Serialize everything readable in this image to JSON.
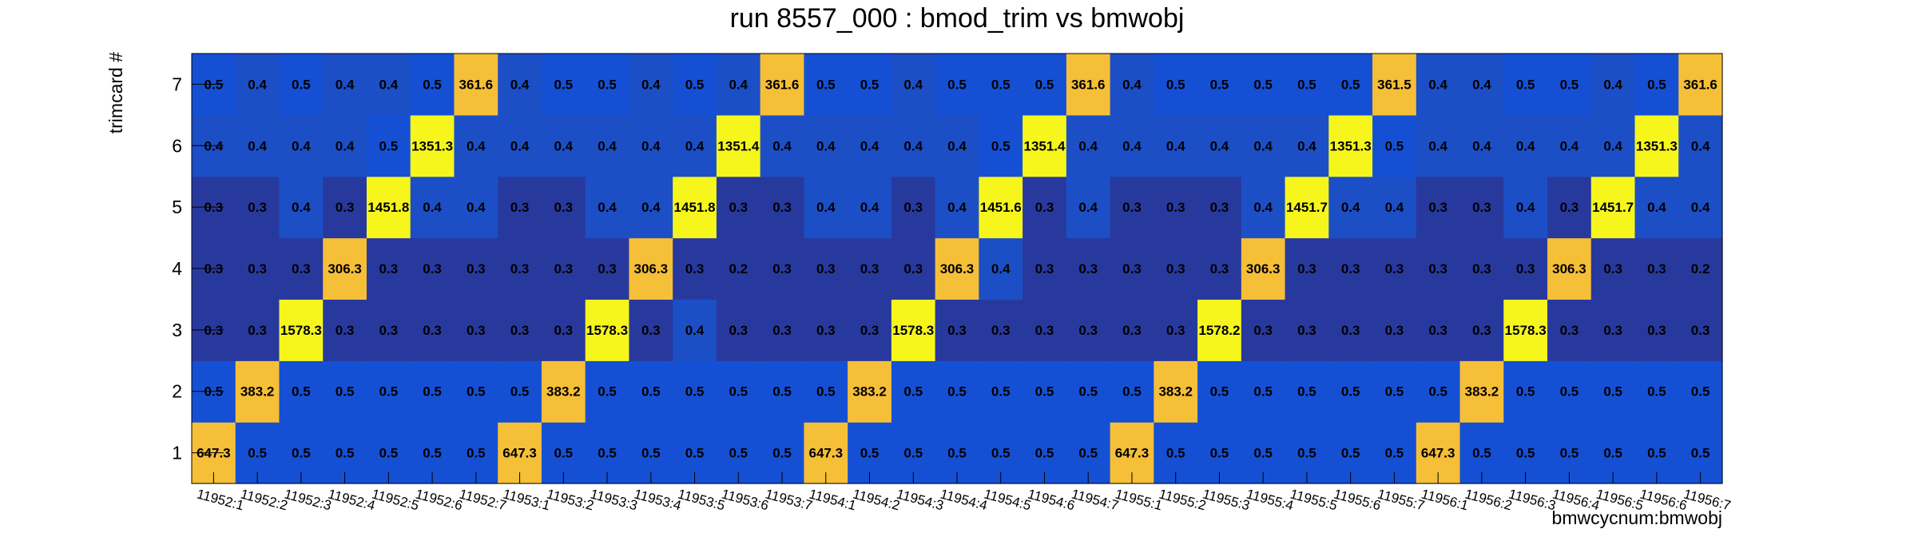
{
  "chart_data": {
    "type": "heatmap",
    "title": "run 8557_000 : bmod_trim vs bmwobj",
    "xlabel": "bmwcycnum:bmwobj",
    "ylabel": "trimcard #",
    "x_categories": [
      "11952:1",
      "11952:2",
      "11952:3",
      "11952:4",
      "11952:5",
      "11952:6",
      "11952:7",
      "11953:1",
      "11953:2",
      "11953:3",
      "11953:4",
      "11953:5",
      "11953:6",
      "11953:7",
      "11954:1",
      "11954:2",
      "11954:3",
      "11954:4",
      "11954:5",
      "11954:6",
      "11954:7",
      "11955:1",
      "11955:2",
      "11955:3",
      "11955:4",
      "11955:5",
      "11955:6",
      "11955:7",
      "11956:1",
      "11956:2",
      "11956:3",
      "11956:4",
      "11956:5",
      "11956:6",
      "11956:7"
    ],
    "y_categories": [
      "1",
      "2",
      "3",
      "4",
      "5",
      "6",
      "7"
    ],
    "values": [
      [
        "647.3",
        "0.5",
        "0.5",
        "0.5",
        "0.5",
        "0.5",
        "0.5",
        "647.3",
        "0.5",
        "0.5",
        "0.5",
        "0.5",
        "0.5",
        "0.5",
        "647.3",
        "0.5",
        "0.5",
        "0.5",
        "0.5",
        "0.5",
        "0.5",
        "647.3",
        "0.5",
        "0.5",
        "0.5",
        "0.5",
        "0.5",
        "0.5",
        "647.3",
        "0.5",
        "0.5",
        "0.5",
        "0.5",
        "0.5",
        "0.5"
      ],
      [
        "0.5",
        "383.2",
        "0.5",
        "0.5",
        "0.5",
        "0.5",
        "0.5",
        "0.5",
        "383.2",
        "0.5",
        "0.5",
        "0.5",
        "0.5",
        "0.5",
        "0.5",
        "383.2",
        "0.5",
        "0.5",
        "0.5",
        "0.5",
        "0.5",
        "0.5",
        "383.2",
        "0.5",
        "0.5",
        "0.5",
        "0.5",
        "0.5",
        "0.5",
        "383.2",
        "0.5",
        "0.5",
        "0.5",
        "0.5",
        "0.5"
      ],
      [
        "0.3",
        "0.3",
        "1578.3",
        "0.3",
        "0.3",
        "0.3",
        "0.3",
        "0.3",
        "0.3",
        "1578.3",
        "0.3",
        "0.4",
        "0.3",
        "0.3",
        "0.3",
        "0.3",
        "1578.3",
        "0.3",
        "0.3",
        "0.3",
        "0.3",
        "0.3",
        "0.3",
        "1578.2",
        "0.3",
        "0.3",
        "0.3",
        "0.3",
        "0.3",
        "0.3",
        "1578.3",
        "0.3",
        "0.3",
        "0.3",
        "0.3"
      ],
      [
        "0.3",
        "0.3",
        "0.3",
        "306.3",
        "0.3",
        "0.3",
        "0.3",
        "0.3",
        "0.3",
        "0.3",
        "306.3",
        "0.3",
        "0.2",
        "0.3",
        "0.3",
        "0.3",
        "0.3",
        "306.3",
        "0.4",
        "0.3",
        "0.3",
        "0.3",
        "0.3",
        "0.3",
        "306.3",
        "0.3",
        "0.3",
        "0.3",
        "0.3",
        "0.3",
        "0.3",
        "306.3",
        "0.3",
        "0.3",
        "0.2"
      ],
      [
        "0.3",
        "0.3",
        "0.4",
        "0.3",
        "1451.8",
        "0.4",
        "0.4",
        "0.3",
        "0.3",
        "0.4",
        "0.4",
        "1451.8",
        "0.3",
        "0.3",
        "0.4",
        "0.4",
        "0.3",
        "0.4",
        "1451.6",
        "0.3",
        "0.4",
        "0.3",
        "0.3",
        "0.3",
        "0.4",
        "1451.7",
        "0.4",
        "0.4",
        "0.3",
        "0.3",
        "0.4",
        "0.3",
        "1451.7",
        "0.4",
        "0.4"
      ],
      [
        "0.4",
        "0.4",
        "0.4",
        "0.4",
        "0.5",
        "1351.3",
        "0.4",
        "0.4",
        "0.4",
        "0.4",
        "0.4",
        "0.4",
        "1351.4",
        "0.4",
        "0.4",
        "0.4",
        "0.4",
        "0.4",
        "0.5",
        "1351.4",
        "0.4",
        "0.4",
        "0.4",
        "0.4",
        "0.4",
        "0.4",
        "1351.3",
        "0.5",
        "0.4",
        "0.4",
        "0.4",
        "0.4",
        "0.4",
        "1351.3",
        "0.4"
      ],
      [
        "0.5",
        "0.4",
        "0.5",
        "0.4",
        "0.4",
        "0.5",
        "361.6",
        "0.4",
        "0.5",
        "0.5",
        "0.4",
        "0.5",
        "0.4",
        "361.6",
        "0.5",
        "0.5",
        "0.4",
        "0.5",
        "0.5",
        "0.5",
        "361.6",
        "0.4",
        "0.5",
        "0.5",
        "0.5",
        "0.5",
        "0.5",
        "361.5",
        "0.4",
        "0.4",
        "0.5",
        "0.5",
        "0.4",
        "0.5",
        "361.6"
      ]
    ],
    "colors": {
      "low_dark": "#28399e",
      "low_mid": "#1c4fc6",
      "low_light": "#1550d4",
      "mid_high": "#f6bf38",
      "high": "#f6f61c"
    }
  }
}
